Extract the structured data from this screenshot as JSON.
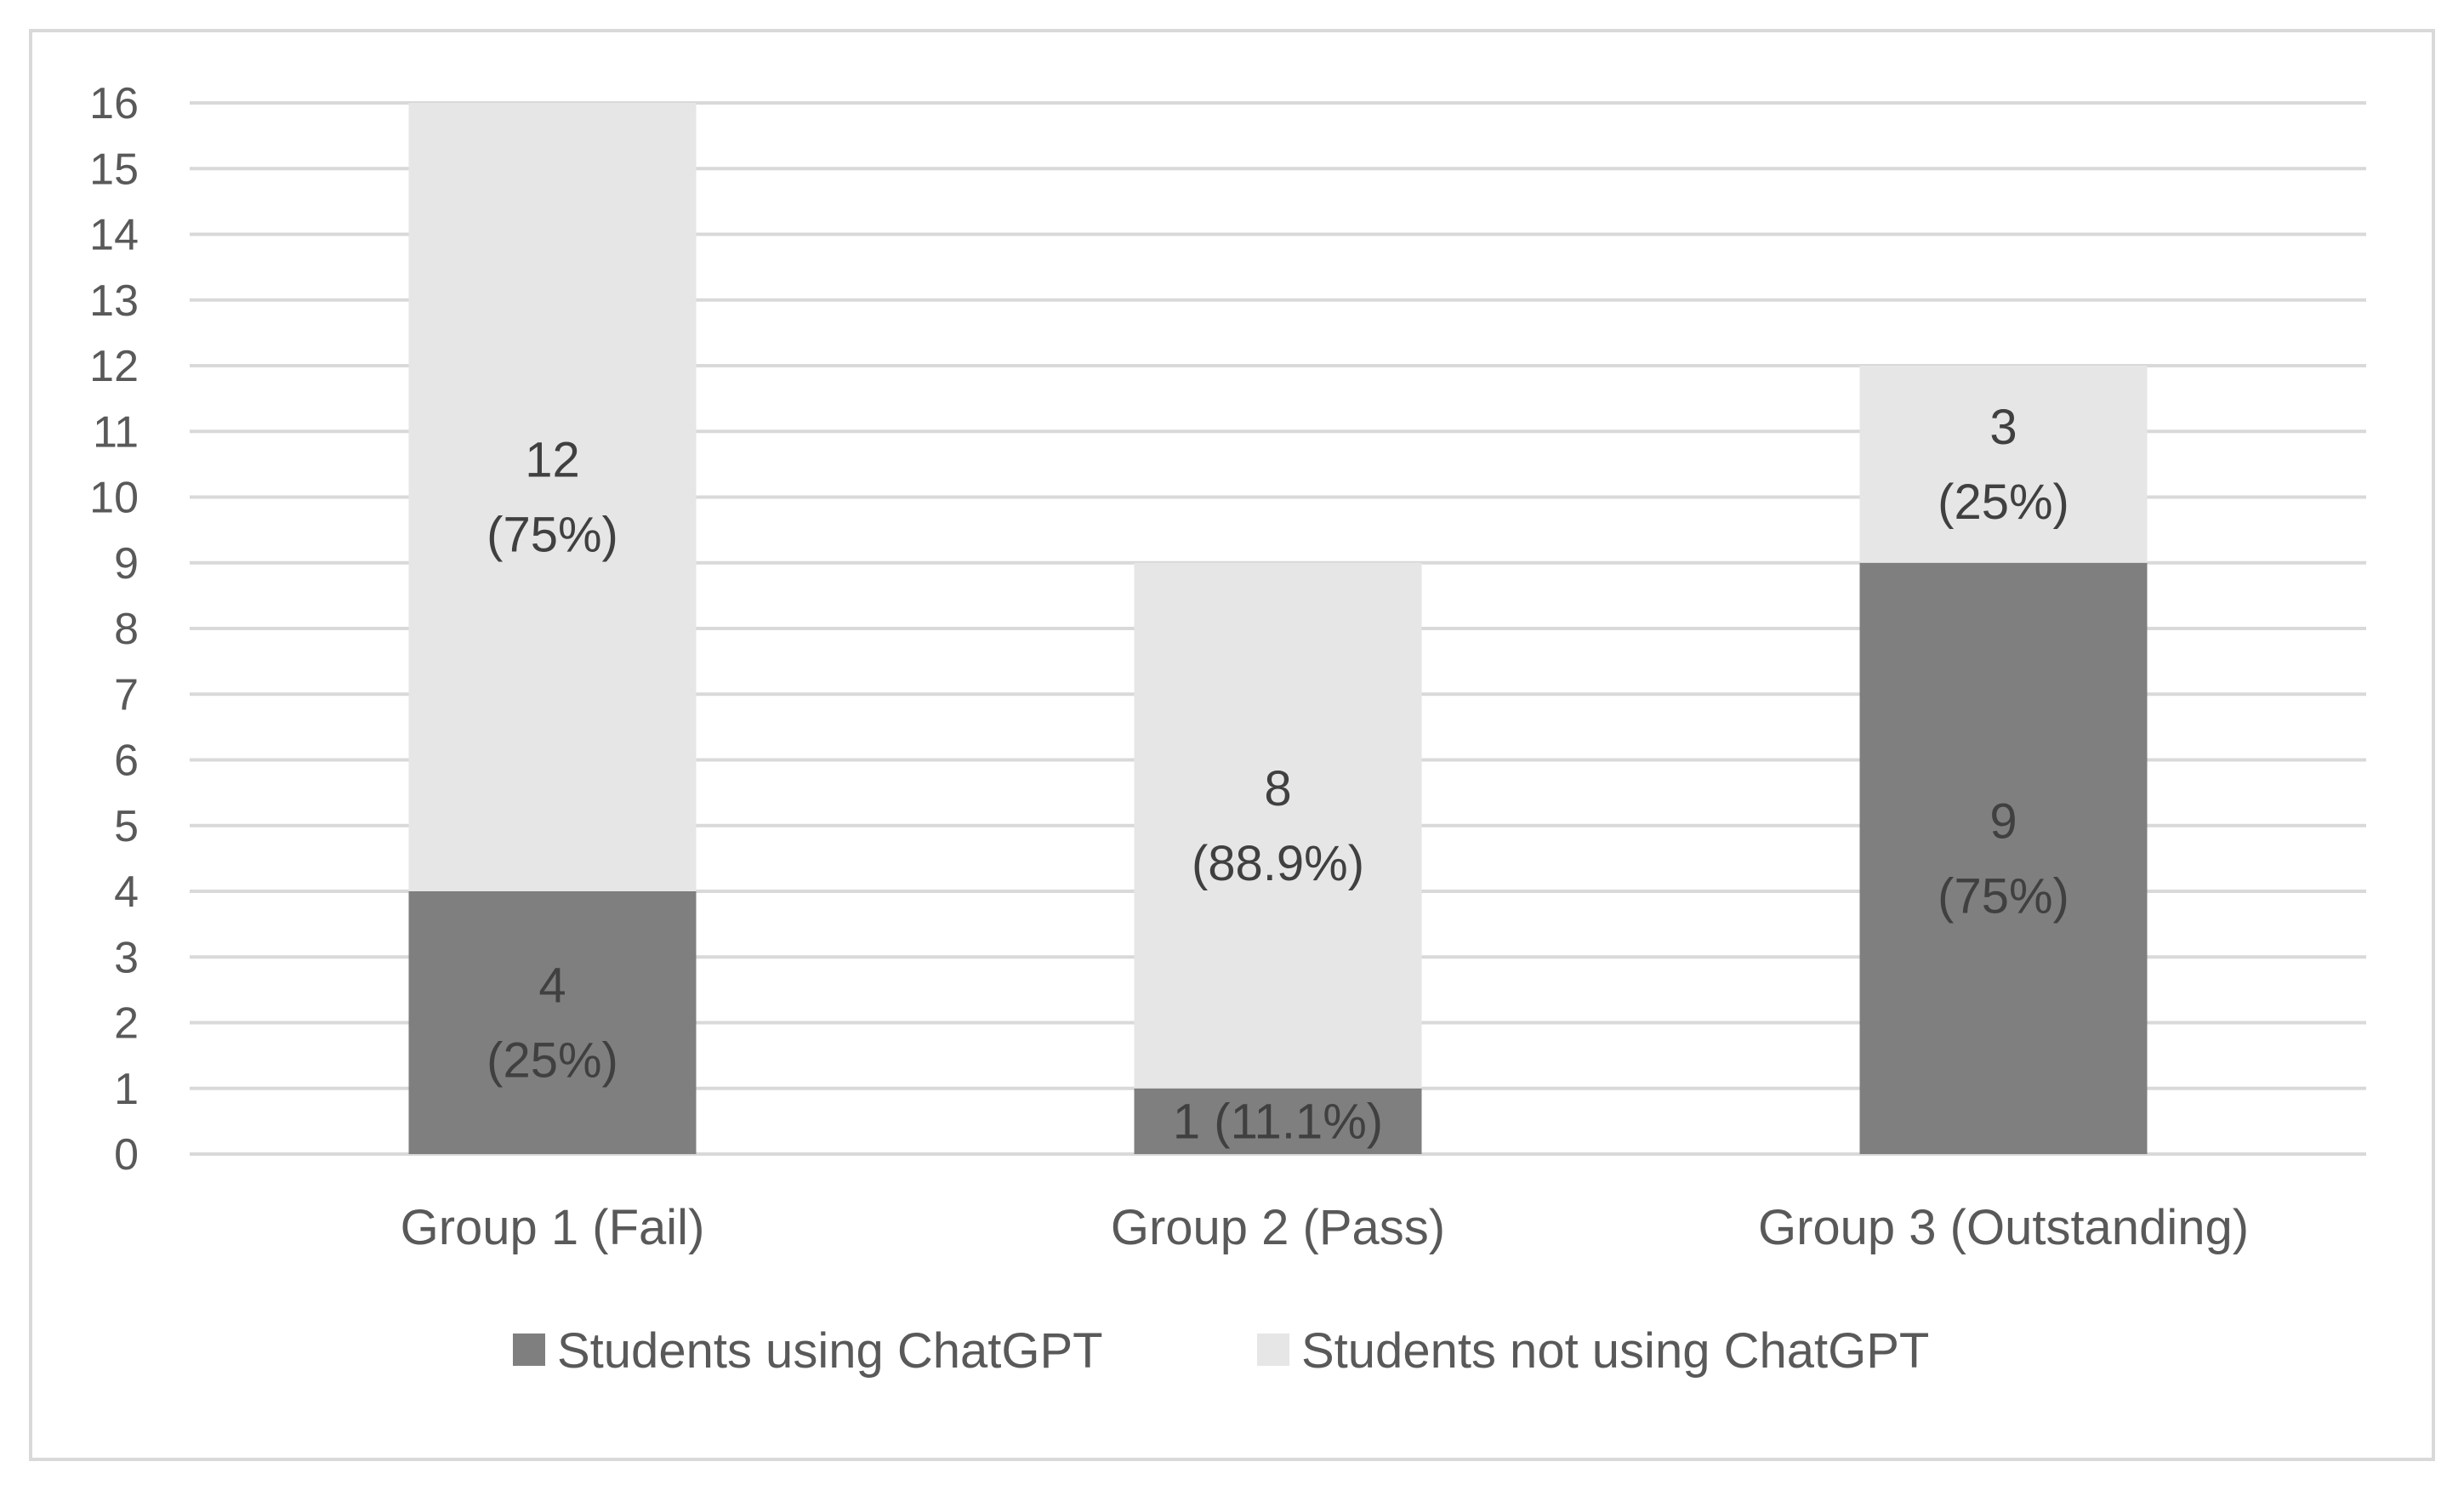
{
  "chart_data": {
    "type": "bar",
    "stacked": true,
    "title": "",
    "xlabel": "",
    "ylabel": "",
    "ylim": [
      0,
      16
    ],
    "y_ticks": [
      "0",
      "1",
      "2",
      "3",
      "4",
      "5",
      "6",
      "7",
      "8",
      "9",
      "10",
      "11",
      "12",
      "13",
      "14",
      "15",
      "16"
    ],
    "grid": true,
    "legend_position": "bottom",
    "categories": [
      "Group 1 (Fail)",
      "Group 2 (Pass)",
      "Group 3 (Outstanding)"
    ],
    "series": [
      {
        "name": "Students using ChatGPT",
        "color": "#7f7f7f",
        "label_color": "#404040",
        "values": [
          4,
          1,
          9
        ],
        "labels": [
          [
            "4",
            "(25%)"
          ],
          [
            "1 (11.1%)"
          ],
          [
            "9",
            "(75%)"
          ]
        ]
      },
      {
        "name": "Students not using ChatGPT",
        "color": "#e7e6e6",
        "label_color": "#404040",
        "values": [
          12,
          8,
          3
        ],
        "labels": [
          [
            "12",
            "(75%)"
          ],
          [
            "8",
            "(88.9%)"
          ],
          [
            "3",
            "(25%)"
          ]
        ]
      }
    ]
  }
}
